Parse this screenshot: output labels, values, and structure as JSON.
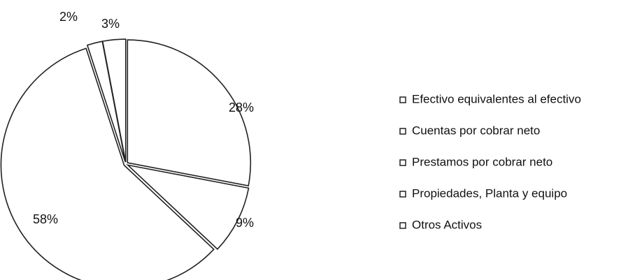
{
  "chart_data": {
    "type": "pie",
    "categories": [
      "Efectivo equivalentes al efectivo",
      "Cuentas por cobrar neto",
      "Prestamos por cobrar neto",
      "Propiedades, Planta y equipo",
      "Otros Activos"
    ],
    "values": [
      28,
      9,
      58,
      2,
      3
    ],
    "value_labels": [
      "28%",
      "9%",
      "58%",
      "2%",
      "3%"
    ],
    "color": "#ffffff",
    "legend": "right"
  }
}
